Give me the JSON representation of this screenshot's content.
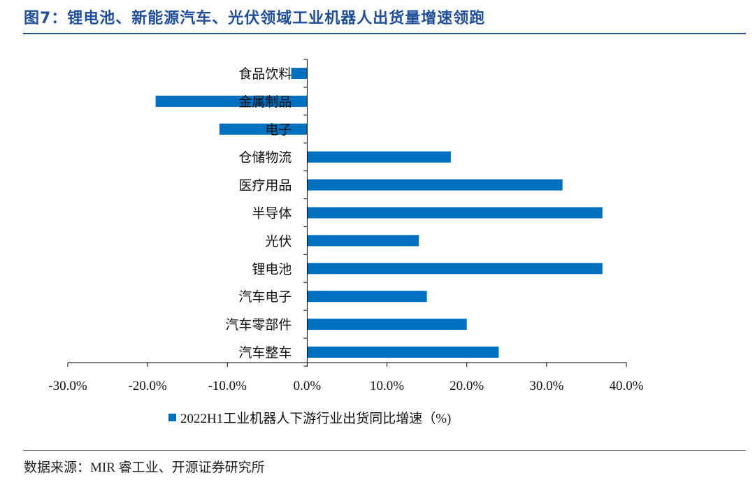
{
  "title": "图7：锂电池、新能源汽车、光伏领域工业机器人出货量增速领跑",
  "source": "数据来源：MIR 睿工业、开源证券研究所",
  "chart_data": {
    "type": "bar",
    "orientation": "horizontal",
    "categories": [
      "食品饮料",
      "金属制品",
      "电子",
      "仓储物流",
      "医疗用品",
      "半导体",
      "光伏",
      "锂电池",
      "汽车电子",
      "汽车零部件",
      "汽车整车"
    ],
    "series": [
      {
        "name": "2022H1工业机器人下游行业出货同比增速（%)",
        "values": [
          -2,
          -19,
          -11,
          18,
          32,
          37,
          14,
          37,
          15,
          20,
          24
        ],
        "color": "#0070c0"
      }
    ],
    "xlim": [
      -30,
      40
    ],
    "xticks": [
      -30,
      -20,
      -10,
      0,
      10,
      20,
      30,
      40
    ],
    "xtick_labels": [
      "-30.0%",
      "-20.0%",
      "-10.0%",
      "0.0%",
      "10.0%",
      "20.0%",
      "30.0%",
      "40.0%"
    ],
    "grid": false,
    "legend_position": "bottom"
  }
}
